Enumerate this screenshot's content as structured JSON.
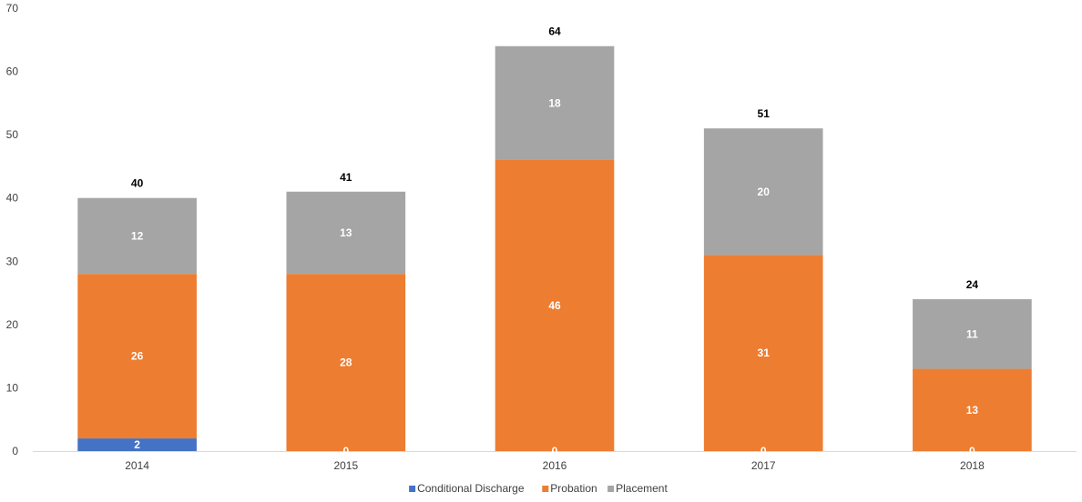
{
  "chart_data": {
    "type": "bar",
    "stacked": true,
    "categories": [
      "2014",
      "2015",
      "2016",
      "2017",
      "2018"
    ],
    "series": [
      {
        "name": "Conditional Discharge",
        "color": "#4472C4",
        "values": [
          2,
          0,
          0,
          0,
          0
        ]
      },
      {
        "name": "Probation",
        "color": "#ED7D31",
        "values": [
          26,
          28,
          46,
          31,
          13
        ]
      },
      {
        "name": "Placement",
        "color": "#A5A5A5",
        "values": [
          12,
          13,
          18,
          20,
          11
        ]
      }
    ],
    "totals": [
      40,
      41,
      64,
      51,
      24
    ],
    "ylim": [
      0,
      70
    ],
    "yticks": [
      0,
      10,
      20,
      30,
      40,
      50,
      60,
      70
    ],
    "grid": false,
    "legend": "bottom-center",
    "title": "",
    "xlabel": "",
    "ylabel": ""
  }
}
